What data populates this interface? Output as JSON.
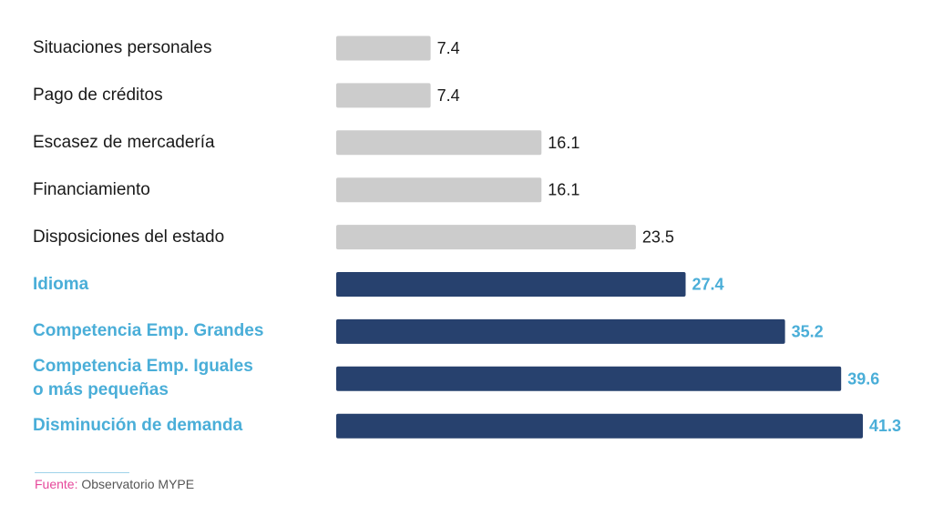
{
  "chart_data": {
    "type": "bar",
    "orientation": "horizontal",
    "categories": [
      "Situaciones personales",
      "Pago de créditos",
      "Escasez de mercadería",
      "Financiamiento",
      "Disposiciones del estado",
      "Idioma",
      "Competencia Emp. Grandes",
      "Competencia Emp. Iguales\no más pequeñas",
      "Disminución de demanda"
    ],
    "values": [
      7.4,
      7.4,
      16.1,
      16.1,
      23.5,
      27.4,
      35.2,
      39.6,
      41.3
    ],
    "value_labels": [
      "7.4",
      "7.4",
      "16.1",
      "16.1",
      "23.5",
      "27.4",
      "35.2",
      "39.6",
      "41.3"
    ],
    "highlighted": [
      false,
      false,
      false,
      false,
      false,
      true,
      true,
      true,
      true
    ],
    "xlim": [
      0,
      41.3
    ],
    "grid": false,
    "title": "",
    "xlabel": "",
    "ylabel": ""
  },
  "colors": {
    "bar_default": "#cccccc",
    "bar_highlight": "#27416e",
    "label_default": "#1a1a1a",
    "label_highlight": "#4aaed8",
    "source_prefix": "#e6489b",
    "source_text": "#555555"
  },
  "source": {
    "prefix": "Fuente:",
    "text": "Observatorio MYPE"
  }
}
